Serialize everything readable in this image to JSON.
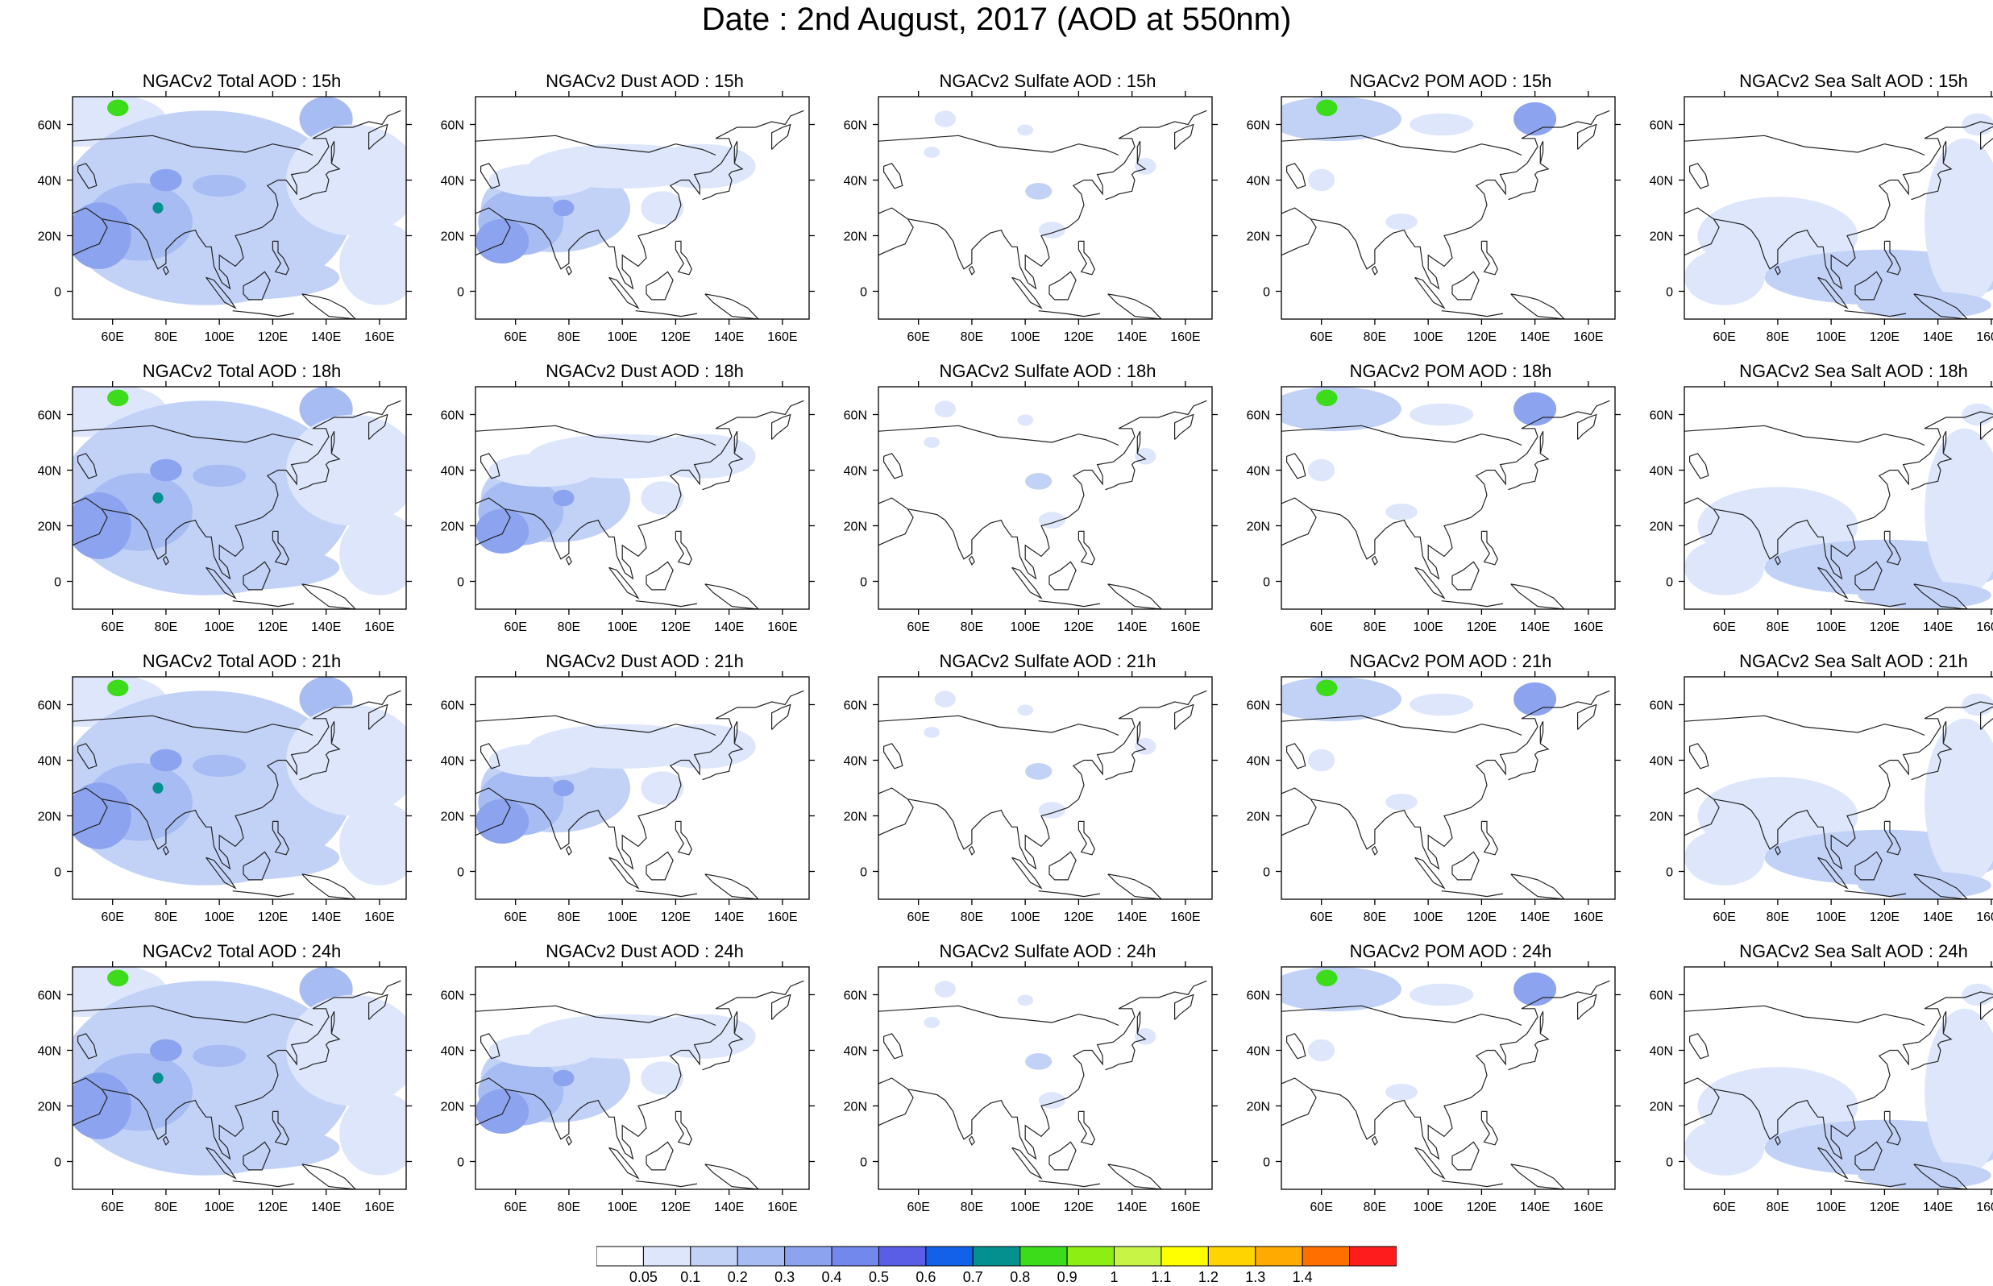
{
  "title": "Date : 2nd August, 2017 (AOD at 550nm)",
  "panels": [
    {
      "title": "NGACv2 Total AOD : 15h",
      "variable": "Total",
      "hour": "15h"
    },
    {
      "title": "NGACv2 Dust AOD : 15h",
      "variable": "Dust",
      "hour": "15h"
    },
    {
      "title": "NGACv2 Sulfate AOD : 15h",
      "variable": "Sulfate",
      "hour": "15h"
    },
    {
      "title": "NGACv2 POM AOD : 15h",
      "variable": "POM",
      "hour": "15h"
    },
    {
      "title": "NGACv2 Sea Salt AOD : 15h",
      "variable": "Sea Salt",
      "hour": "15h"
    },
    {
      "title": "NGACv2 Total AOD : 18h",
      "variable": "Total",
      "hour": "18h"
    },
    {
      "title": "NGACv2 Dust AOD : 18h",
      "variable": "Dust",
      "hour": "18h"
    },
    {
      "title": "NGACv2 Sulfate AOD : 18h",
      "variable": "Sulfate",
      "hour": "18h"
    },
    {
      "title": "NGACv2 POM AOD : 18h",
      "variable": "POM",
      "hour": "18h"
    },
    {
      "title": "NGACv2 Sea Salt AOD : 18h",
      "variable": "Sea Salt",
      "hour": "18h"
    },
    {
      "title": "NGACv2 Total AOD : 21h",
      "variable": "Total",
      "hour": "21h"
    },
    {
      "title": "NGACv2 Dust AOD : 21h",
      "variable": "Dust",
      "hour": "21h"
    },
    {
      "title": "NGACv2 Sulfate AOD : 21h",
      "variable": "Sulfate",
      "hour": "21h"
    },
    {
      "title": "NGACv2 POM AOD : 21h",
      "variable": "POM",
      "hour": "21h"
    },
    {
      "title": "NGACv2 Sea Salt AOD : 21h",
      "variable": "Sea Salt",
      "hour": "21h"
    },
    {
      "title": "NGACv2 Total AOD : 24h",
      "variable": "Total",
      "hour": "24h"
    },
    {
      "title": "NGACv2 Dust AOD : 24h",
      "variable": "Dust",
      "hour": "24h"
    },
    {
      "title": "NGACv2 Sulfate AOD : 24h",
      "variable": "Sulfate",
      "hour": "24h"
    },
    {
      "title": "NGACv2 POM AOD : 24h",
      "variable": "POM",
      "hour": "24h"
    },
    {
      "title": "NGACv2 Sea Salt  AOD : 24h",
      "variable": "Sea Salt",
      "hour": "24h"
    }
  ],
  "axes": {
    "lon_ticks": [
      "60E",
      "80E",
      "100E",
      "120E",
      "140E",
      "160E"
    ],
    "lon_values": [
      60,
      80,
      100,
      120,
      140,
      160
    ],
    "lat_ticks": [
      "60N",
      "40N",
      "20N",
      "0"
    ],
    "lat_values": [
      60,
      40,
      20,
      0
    ],
    "lon_range": [
      45,
      170
    ],
    "lat_range": [
      -10,
      70
    ]
  },
  "colorbar": {
    "labels": [
      "0.05",
      "0.1",
      "0.2",
      "0.3",
      "0.4",
      "0.5",
      "0.6",
      "0.7",
      "0.8",
      "0.9",
      "1",
      "1.1",
      "1.2",
      "1.3",
      "1.4"
    ],
    "colors": [
      "#ffffff",
      "#dde6fb",
      "#c2d2f7",
      "#a7bcf3",
      "#8ca3ef",
      "#7388ec",
      "#5a5ee6",
      "#1261e8",
      "#059090",
      "#3ddc1a",
      "#8dee14",
      "#c8f545",
      "#ffff00",
      "#ffd400",
      "#ffaa00",
      "#ff6f00",
      "#ff1c1c"
    ]
  }
}
